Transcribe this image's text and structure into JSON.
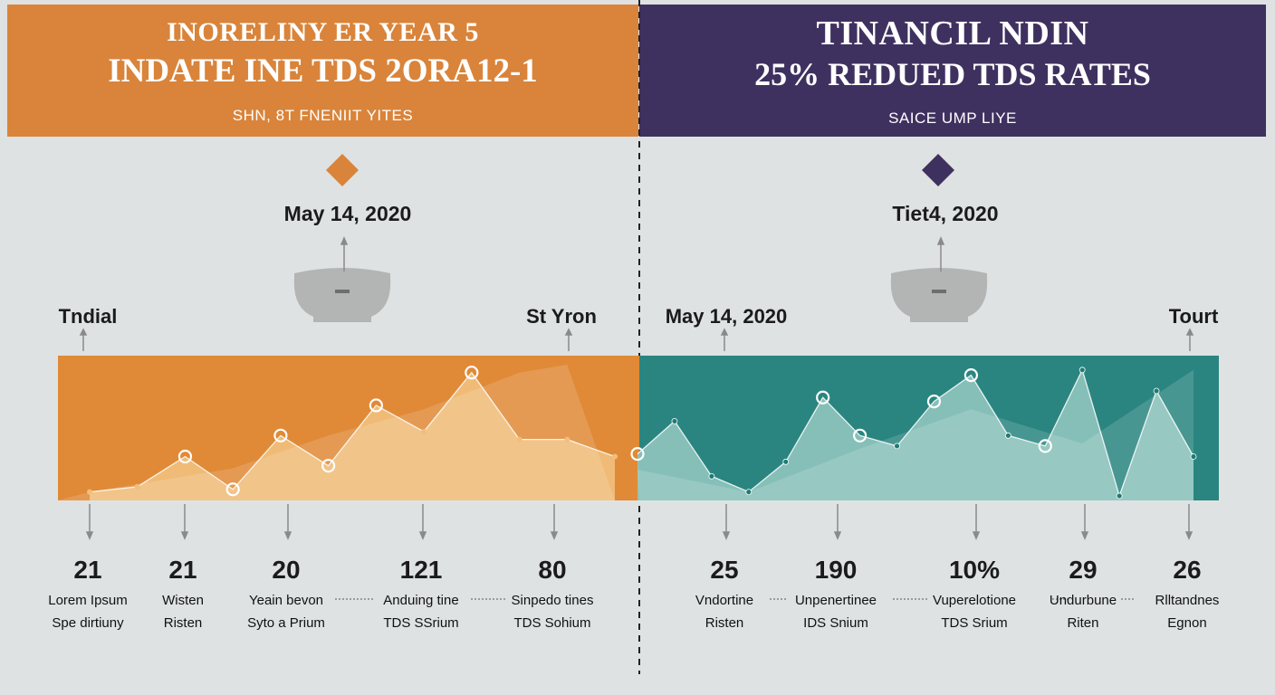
{
  "left_banner": {
    "kicker": "INORELINY ER YEAR 5",
    "headline": "INDATE INE TDS 2ORA12-1",
    "sub": "SHN, 8T FNENIIT YITES",
    "color": "#d9843a"
  },
  "right_banner": {
    "kicker": "TINANCIL NDIN",
    "headline": "25% REDUED TDS RATES",
    "sub": "SAICE UMP LIYE",
    "color": "#3f315f"
  },
  "left_event": {
    "date": "May 14, 2020",
    "color": "#d9843a"
  },
  "right_event": {
    "date": "Tiet4, 2020",
    "color": "#3f315f"
  },
  "axis_tags": {
    "start": "Tndial",
    "left_end": "St Yron",
    "right_start": "May 14, 2020",
    "end": "Tourt"
  },
  "chart_data": [
    {
      "type": "area",
      "panel": "left",
      "colors": {
        "band": "#e08a37",
        "fill": "#f0bf7c",
        "line": "#ffffff"
      },
      "ylim": [
        0,
        100
      ],
      "series": [
        {
          "x": [
            0,
            1,
            2,
            3,
            4,
            5,
            6,
            7,
            8,
            9,
            10,
            11
          ],
          "values": [
            3,
            7,
            30,
            5,
            46,
            23,
            69,
            49,
            94,
            43,
            43,
            30
          ]
        },
        {
          "x": [
            0,
            3,
            5,
            7,
            9,
            10
          ],
          "values": [
            3,
            21,
            46,
            66,
            94,
            100
          ]
        }
      ],
      "markers_x": [
        2,
        3,
        4,
        5,
        6,
        8
      ],
      "values_row": [
        {
          "value": "21",
          "caption1": "Lorem Ipsum",
          "caption2": "Spe dirtiuny"
        },
        {
          "value": "21",
          "caption1": "Wisten",
          "caption2": "Risten"
        },
        {
          "value": "20",
          "caption1": "Yeain bevon",
          "caption2": "Syto a Prium"
        },
        {
          "value": "121",
          "caption1": "Anduing tine",
          "caption2": "TDS SSrium"
        },
        {
          "value": "80",
          "caption1": "Sinpedo tines",
          "caption2": "TDS Sohium"
        }
      ]
    },
    {
      "type": "area",
      "panel": "right",
      "colors": {
        "band": "#2a8580",
        "fill": "#8ec4bd",
        "line": "#ffffff",
        "marker": "#1f7b74"
      },
      "ylim": [
        0,
        100
      ],
      "series": [
        {
          "x": [
            0,
            1,
            2,
            3,
            4,
            5,
            6,
            7,
            8,
            9,
            10,
            11,
            12,
            13,
            14,
            15
          ],
          "values": [
            32,
            57,
            15,
            3,
            26,
            75,
            46,
            38,
            72,
            92,
            46,
            38,
            96,
            0,
            80,
            30
          ]
        },
        {
          "x": [
            0,
            3,
            6,
            9,
            12,
            15
          ],
          "values": [
            20,
            3,
            36,
            66,
            40,
            96
          ]
        }
      ],
      "markers_x": [
        0,
        5,
        6,
        8,
        9,
        11
      ],
      "values_row": [
        {
          "value": "25",
          "caption1": "Vndortine",
          "caption2": "Risten"
        },
        {
          "value": "190",
          "caption1": "Unpenertinee",
          "caption2": "IDS Snium"
        },
        {
          "value": "10%",
          "caption1": "Vuperelotione",
          "caption2": "TDS Srium"
        },
        {
          "value": "29",
          "caption1": "Undurbune",
          "caption2": "Riten"
        },
        {
          "value": "26",
          "caption1": "Rlltandnes",
          "caption2": "Egnon"
        }
      ]
    }
  ]
}
